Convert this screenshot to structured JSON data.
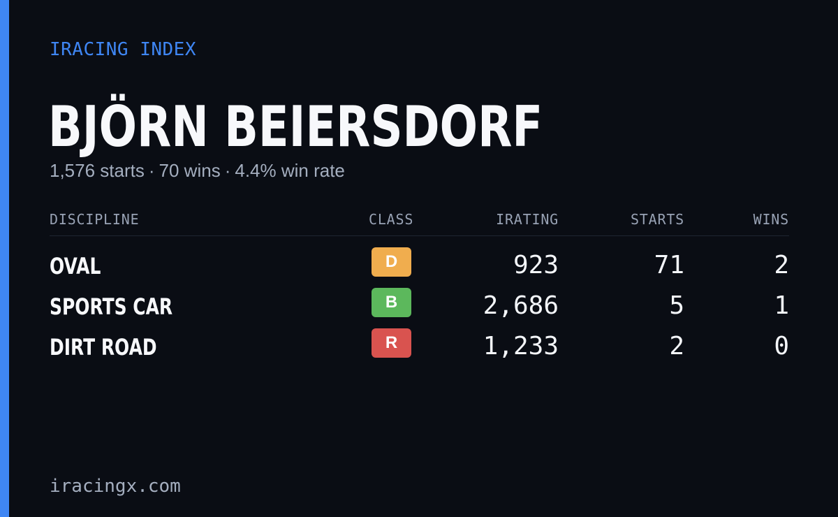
{
  "brand": {
    "kicker": "IRACING INDEX",
    "footer": "iracingx.com",
    "accent_color": "#3f86f4"
  },
  "driver": {
    "name": "BJÖRN BEIERSDORF",
    "starts": "1,576 starts",
    "wins": "70 wins",
    "win_rate": "4.4% win rate",
    "separator": "·"
  },
  "table": {
    "headers": {
      "discipline": "DISCIPLINE",
      "class": "CLASS",
      "irating": "IRATING",
      "starts": "STARTS",
      "wins": "WINS"
    },
    "rows": [
      {
        "discipline": "OVAL",
        "class": "D",
        "class_color": "#f0ad4e",
        "irating": "923",
        "starts": "71",
        "wins": "2"
      },
      {
        "discipline": "SPORTS CAR",
        "class": "B",
        "class_color": "#5cb85c",
        "irating": "2,686",
        "starts": "5",
        "wins": "1"
      },
      {
        "discipline": "DIRT ROAD",
        "class": "R",
        "class_color": "#d9534f",
        "irating": "1,233",
        "starts": "2",
        "wins": "0"
      }
    ]
  }
}
